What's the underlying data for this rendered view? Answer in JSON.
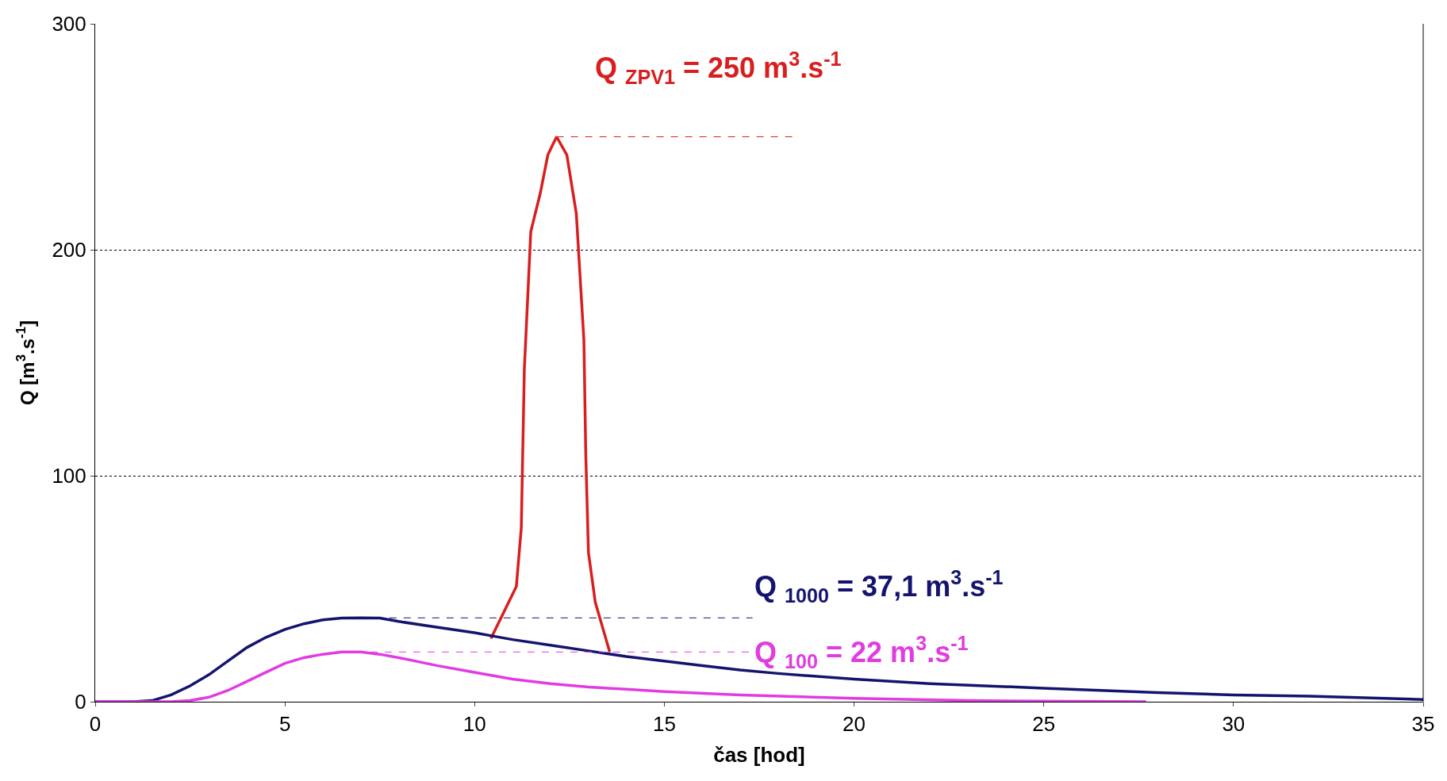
{
  "chart_data": {
    "type": "line",
    "xlabel": "čas [hod]",
    "ylabel": "Q [m$^{3}$.s$^{-1}$]",
    "xlim": [
      0,
      35
    ],
    "xticks": [
      0,
      5,
      10,
      15,
      20,
      25,
      30,
      35
    ],
    "ylim": [
      0,
      300
    ],
    "yticks": [
      0,
      100,
      200,
      300
    ],
    "grid": "y",
    "legend": false,
    "marker": "none",
    "line_style": "solid",
    "series": [
      {
        "color": "#d81e1e",
        "x": [
          10.43,
          11.1,
          11.23,
          11.31,
          11.48,
          11.73,
          11.93,
          12.16,
          12.43,
          12.68,
          12.88,
          12.93,
          13.0,
          13.18,
          13.56
        ],
        "values": [
          28,
          51,
          77,
          147,
          208,
          225,
          242,
          250,
          242,
          216,
          160,
          109,
          66,
          44,
          22
        ]
      },
      {
        "color": "#14146e",
        "x": [
          0,
          1,
          1.5,
          2,
          2.5,
          3,
          3.5,
          4,
          4.5,
          5,
          5.5,
          6,
          6.5,
          7,
          7.5,
          8,
          9,
          10,
          10.5,
          11,
          12,
          13,
          14,
          15,
          16,
          17,
          18,
          20,
          22,
          25,
          28,
          30,
          32,
          35
        ],
        "values": [
          0,
          0,
          0.5,
          3,
          7,
          12,
          18,
          24,
          28.5,
          32,
          34.5,
          36.2,
          37,
          37.1,
          37,
          35.5,
          33,
          30.5,
          29,
          27.5,
          25,
          22.5,
          20,
          18,
          16,
          14,
          12.5,
          10,
          8,
          6,
          4,
          3,
          2.5,
          1
        ]
      },
      {
        "color": "#e03ce0",
        "x": [
          0,
          2,
          2.5,
          3,
          3.5,
          4,
          4.5,
          5,
          5.5,
          6,
          6.5,
          7,
          7.5,
          8,
          9,
          10,
          11,
          12,
          13,
          14,
          15,
          17,
          20,
          23,
          27.7
        ],
        "values": [
          0,
          0,
          0.5,
          2,
          5,
          9,
          13,
          17,
          19.5,
          21,
          22,
          22,
          21,
          19.5,
          16,
          13,
          10,
          8,
          6.5,
          5.5,
          4.5,
          3,
          1.5,
          0.5,
          0
        ]
      }
    ],
    "ref_lines": [
      {
        "axis": "y",
        "value": 250,
        "label": "Q $_{ZPV1}$ = 250 m$^{3}$.s$^{-1}$",
        "color": "#d81e1e",
        "line_style": "dashed"
      },
      {
        "axis": "y",
        "value": 37.1,
        "label": "Q $_{1000}$ = 37,1 m$^{3}$.s$^{-1}$",
        "color": "#14146e",
        "line_style": "dashed"
      },
      {
        "axis": "y",
        "value": 22,
        "label": "Q $_{100}$ = 22 m$^{3}$.s$^{-1}$",
        "color": "#e03ce0",
        "line_style": "dashed"
      }
    ]
  }
}
